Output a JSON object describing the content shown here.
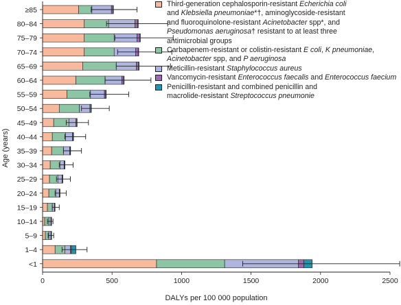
{
  "chart_data": {
    "type": "bar",
    "orientation": "horizontal",
    "stacked": true,
    "categories": [
      "≥85",
      "80–84",
      "75–79",
      "70–74",
      "65–69",
      "60–64",
      "55–59",
      "50–54",
      "45–49",
      "40–44",
      "35–39",
      "30–34",
      "25–29",
      "20–24",
      "15–19",
      "10–14",
      "5–9",
      "1–4",
      "<1"
    ],
    "series": [
      {
        "name": "Third-generation cephalosporin-resistant Echerichia coli and Klebsiella pneumoniae*†, aminoglycoside-resistant and fluoroquinolone-resistant Acinetobacter spp*, and Pseudomonas aeruginosa† resistant to at least three antimicrobial groups",
        "color": "#f8b99c",
        "values": [
          260,
          300,
          300,
          300,
          290,
          240,
          175,
          120,
          80,
          70,
          65,
          55,
          50,
          45,
          35,
          15,
          20,
          90,
          820
        ]
      },
      {
        "name": "Carbapenem-resistant or colistin-resistant E coli, K pneumoniae, Acinetobacter spp, and P aeruginosa",
        "color": "#8dc6a5",
        "values": [
          95,
          175,
          215,
          215,
          240,
          210,
          170,
          145,
          110,
          95,
          85,
          70,
          60,
          50,
          35,
          30,
          25,
          70,
          490
        ]
      },
      {
        "name": "Meticillin-resistant Staphylococcus aureus",
        "color": "#aeb6e0",
        "values": [
          140,
          190,
          165,
          155,
          145,
          120,
          100,
          75,
          50,
          50,
          45,
          30,
          30,
          25,
          15,
          15,
          15,
          40,
          530
        ]
      },
      {
        "name": "Vancomycin-resistant Enterococcus faecalis and Enterococcus faecium",
        "color": "#9b6bb0",
        "values": [
          12,
          20,
          20,
          18,
          16,
          14,
          10,
          8,
          6,
          5,
          4,
          3,
          3,
          3,
          2,
          2,
          2,
          8,
          40
        ]
      },
      {
        "name": "Penicillin-resistant and combined penicillin and macrolide-resistant Streptococcus pneumonie",
        "color": "#1a97b2",
        "values": [
          3,
          4,
          4,
          4,
          4,
          3,
          3,
          3,
          3,
          3,
          3,
          3,
          3,
          3,
          3,
          3,
          3,
          32,
          60
        ]
      }
    ],
    "error_bars_upper": [
      680,
      900,
      940,
      930,
      920,
      780,
      620,
      480,
      330,
      310,
      280,
      220,
      200,
      170,
      120,
      75,
      80,
      320,
      2570
    ],
    "error_bars_lower": [
      350,
      460,
      520,
      540,
      530,
      450,
      340,
      280,
      170,
      160,
      150,
      120,
      100,
      90,
      70,
      35,
      40,
      140,
      1440
    ],
    "xlabel": "DALYs per 100 000 population",
    "ylabel": "Age (years)",
    "xlim": [
      0,
      2500
    ],
    "xticks": [
      "0",
      "500",
      "1000",
      "1500",
      "2000",
      "2500"
    ],
    "grid": false,
    "legend_position": "top-right"
  },
  "legend": [
    {
      "color": "#f8b99c",
      "parts": [
        {
          "t": "Third-generation cephalosporin-resistant ",
          "i": false
        },
        {
          "t": "Echerichia coli",
          "i": true
        },
        {
          "t": "\nand ",
          "i": false
        },
        {
          "t": "Klebsiella pneumoniae",
          "i": true
        },
        {
          "t": "*†, aminoglycoside-resistant\nand fluoroquinolone-resistant ",
          "i": false
        },
        {
          "t": "Acinetobacter",
          "i": true
        },
        {
          "t": " spp*, and\n",
          "i": false
        },
        {
          "t": "Pseudomonas aeruginosa",
          "i": true
        },
        {
          "t": "† resistant to at least three\nantimicrobial groups",
          "i": false
        }
      ]
    },
    {
      "color": "#8dc6a5",
      "parts": [
        {
          "t": "Carbapenem-resistant or colistin-resistant ",
          "i": false
        },
        {
          "t": "E coli",
          "i": true
        },
        {
          "t": ",  ",
          "i": false
        },
        {
          "t": "K pneumoniae",
          "i": true
        },
        {
          "t": ",\n",
          "i": false
        },
        {
          "t": "Acinetobacter",
          "i": true
        },
        {
          "t": " spp, and ",
          "i": false
        },
        {
          "t": "P aeruginosa",
          "i": true
        }
      ]
    },
    {
      "color": "#aeb6e0",
      "parts": [
        {
          "t": "Meticillin-resistant ",
          "i": false
        },
        {
          "t": "Staphylococcus aureus",
          "i": true
        }
      ]
    },
    {
      "color": "#9b6bb0",
      "parts": [
        {
          "t": "Vancomycin-resistant ",
          "i": false
        },
        {
          "t": "Enterococcus faecalis",
          "i": true
        },
        {
          "t": " and ",
          "i": false
        },
        {
          "t": "Enterococcus  faecium",
          "i": true
        }
      ]
    },
    {
      "color": "#1a97b2",
      "parts": [
        {
          "t": "Penicillin-resistant and combined penicillin and\nmacrolide-resistant ",
          "i": false
        },
        {
          "t": "Streptococcus pneumonie",
          "i": true
        }
      ]
    }
  ]
}
